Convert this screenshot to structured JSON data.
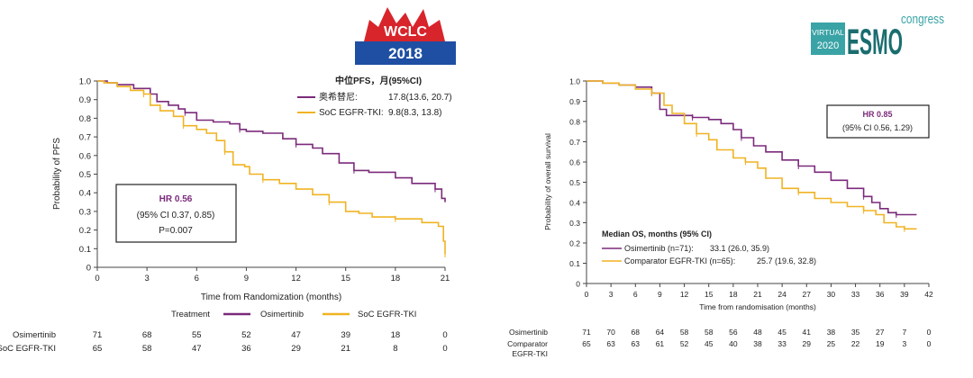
{
  "colors": {
    "osimertinib": "#7b2a7b",
    "comparator": "#f0b323"
  },
  "logos": {
    "wclc": {
      "line1": "WCLC",
      "line2": "2018"
    },
    "esmo": {
      "virtual": "VIRTUAL",
      "year": "2020",
      "brand": "ESMO",
      "congress": "congress"
    }
  },
  "chart_data": [
    {
      "type": "line",
      "xlabel": "Time from Randomization (months)",
      "ylabel": "Probability of PFS",
      "xlim": [
        0,
        21
      ],
      "ylim": [
        0,
        1
      ],
      "x_ticks": [
        0,
        3,
        6,
        9,
        12,
        15,
        18,
        21
      ],
      "y_ticks": [
        0,
        0.1,
        0.2,
        0.3,
        0.4,
        0.5,
        0.6,
        0.7,
        0.8,
        0.9,
        1.0
      ],
      "legend": {
        "title": "中位PFS，月(95%CI)",
        "entries": [
          {
            "name": "奥希替尼:",
            "value": "17.8(13.6, 20.7)"
          },
          {
            "name": "SoC EGFR-TKI:",
            "value": "9.8(8.3, 13.8)"
          }
        ]
      },
      "hr_box": {
        "hr": "HR 0.56",
        "ci": "(95% CI 0.37, 0.85)",
        "p": "P=0.007"
      },
      "series": [
        {
          "name": "奥希替尼",
          "points": [
            [
              0,
              1.0
            ],
            [
              0.6,
              0.99
            ],
            [
              1.2,
              0.98
            ],
            [
              2.2,
              0.96
            ],
            [
              3.2,
              0.93
            ],
            [
              3.6,
              0.89
            ],
            [
              4.3,
              0.87
            ],
            [
              4.9,
              0.85
            ],
            [
              5.3,
              0.83
            ],
            [
              6.0,
              0.79
            ],
            [
              7.0,
              0.78
            ],
            [
              8.0,
              0.77
            ],
            [
              8.6,
              0.74
            ],
            [
              9.0,
              0.73
            ],
            [
              10.0,
              0.72
            ],
            [
              11.2,
              0.69
            ],
            [
              12.0,
              0.66
            ],
            [
              13.0,
              0.64
            ],
            [
              13.6,
              0.61
            ],
            [
              14.6,
              0.56
            ],
            [
              15.5,
              0.52
            ],
            [
              16.4,
              0.51
            ],
            [
              18.0,
              0.48
            ],
            [
              19.0,
              0.45
            ],
            [
              20.4,
              0.42
            ],
            [
              20.8,
              0.37
            ],
            [
              21.0,
              0.35
            ]
          ]
        },
        {
          "name": "SoC EGFR-TKI",
          "points": [
            [
              0,
              1.0
            ],
            [
              0.4,
              0.99
            ],
            [
              1.2,
              0.97
            ],
            [
              2.0,
              0.95
            ],
            [
              2.8,
              0.93
            ],
            [
              3.2,
              0.87
            ],
            [
              3.8,
              0.84
            ],
            [
              4.6,
              0.81
            ],
            [
              5.2,
              0.76
            ],
            [
              6.0,
              0.74
            ],
            [
              6.6,
              0.72
            ],
            [
              7.2,
              0.68
            ],
            [
              7.7,
              0.62
            ],
            [
              8.2,
              0.55
            ],
            [
              8.9,
              0.54
            ],
            [
              9.2,
              0.5
            ],
            [
              10.0,
              0.47
            ],
            [
              11.0,
              0.45
            ],
            [
              12.0,
              0.42
            ],
            [
              13.0,
              0.39
            ],
            [
              14.0,
              0.35
            ],
            [
              15.0,
              0.3
            ],
            [
              15.8,
              0.29
            ],
            [
              16.6,
              0.27
            ],
            [
              18.0,
              0.26
            ],
            [
              19.6,
              0.24
            ],
            [
              20.6,
              0.22
            ],
            [
              20.9,
              0.14
            ],
            [
              21.0,
              0.07
            ]
          ]
        }
      ],
      "risk_table": {
        "header": "Treatment",
        "legend_names": [
          "Osimertinib",
          "SoC EGFR-TKI"
        ],
        "rows": [
          {
            "label": "Osimertinib",
            "values": [
              "71",
              "68",
              "55",
              "52",
              "47",
              "39",
              "18",
              "0"
            ]
          },
          {
            "label": "SoC EGFR-TKI",
            "values": [
              "65",
              "58",
              "47",
              "36",
              "29",
              "21",
              "8",
              "0"
            ]
          }
        ]
      }
    },
    {
      "type": "line",
      "xlabel": "Time from randomisation (months)",
      "ylabel": "Probability of overall survival",
      "xlim": [
        0,
        42
      ],
      "ylim": [
        0,
        1
      ],
      "x_ticks": [
        0,
        3,
        6,
        9,
        12,
        15,
        18,
        21,
        24,
        27,
        30,
        33,
        36,
        39,
        42
      ],
      "y_ticks": [
        0,
        0.1,
        0.2,
        0.3,
        0.4,
        0.5,
        0.6,
        0.7,
        0.8,
        0.9,
        1.0
      ],
      "legend": {
        "title": "Median OS, months (95% CI)",
        "entries": [
          {
            "name": "Osimertinib (n=71):",
            "value": "33.1 (26.0, 35.9)"
          },
          {
            "name": "Comparator EGFR-TKI (n=65):",
            "value": "25.7 (19.6, 32.8)"
          }
        ]
      },
      "hr_box": {
        "hr": "HR 0.85",
        "ci": "(95% CI 0.56, 1.29)"
      },
      "series": [
        {
          "name": "Osimertinib",
          "points": [
            [
              0,
              1.0
            ],
            [
              2,
              0.99
            ],
            [
              4,
              0.98
            ],
            [
              6,
              0.97
            ],
            [
              8,
              0.94
            ],
            [
              9,
              0.86
            ],
            [
              9.8,
              0.83
            ],
            [
              11,
              0.83
            ],
            [
              13,
              0.82
            ],
            [
              15,
              0.81
            ],
            [
              16.5,
              0.79
            ],
            [
              18,
              0.76
            ],
            [
              19,
              0.72
            ],
            [
              20.5,
              0.68
            ],
            [
              22,
              0.65
            ],
            [
              24,
              0.61
            ],
            [
              26,
              0.58
            ],
            [
              28,
              0.55
            ],
            [
              30,
              0.51
            ],
            [
              32,
              0.47
            ],
            [
              34,
              0.43
            ],
            [
              35,
              0.4
            ],
            [
              36,
              0.37
            ],
            [
              37,
              0.35
            ],
            [
              38,
              0.34
            ],
            [
              39,
              0.34
            ],
            [
              40.5,
              0.34
            ]
          ]
        },
        {
          "name": "Comparator EGFR-TKI",
          "points": [
            [
              0,
              1.0
            ],
            [
              2,
              0.99
            ],
            [
              4,
              0.98
            ],
            [
              6,
              0.96
            ],
            [
              8,
              0.94
            ],
            [
              9.5,
              0.88
            ],
            [
              10.5,
              0.84
            ],
            [
              12,
              0.79
            ],
            [
              13.5,
              0.74
            ],
            [
              15,
              0.71
            ],
            [
              16,
              0.66
            ],
            [
              18,
              0.62
            ],
            [
              19.5,
              0.6
            ],
            [
              21,
              0.57
            ],
            [
              22,
              0.52
            ],
            [
              24,
              0.47
            ],
            [
              26,
              0.45
            ],
            [
              28,
              0.42
            ],
            [
              30,
              0.4
            ],
            [
              32,
              0.38
            ],
            [
              34,
              0.36
            ],
            [
              35.5,
              0.34
            ],
            [
              36.5,
              0.3
            ],
            [
              38,
              0.28
            ],
            [
              39,
              0.27
            ],
            [
              40.5,
              0.27
            ]
          ]
        }
      ],
      "risk_table": {
        "rows": [
          {
            "label": "Osimertinib",
            "values": [
              "71",
              "70",
              "68",
              "64",
              "58",
              "58",
              "56",
              "48",
              "45",
              "41",
              "38",
              "35",
              "27",
              "7",
              "0"
            ]
          },
          {
            "label": "Comparator EGFR-TKI",
            "values": [
              "65",
              "63",
              "63",
              "61",
              "52",
              "45",
              "40",
              "38",
              "33",
              "29",
              "25",
              "22",
              "19",
              "3",
              "0"
            ]
          }
        ]
      }
    }
  ]
}
